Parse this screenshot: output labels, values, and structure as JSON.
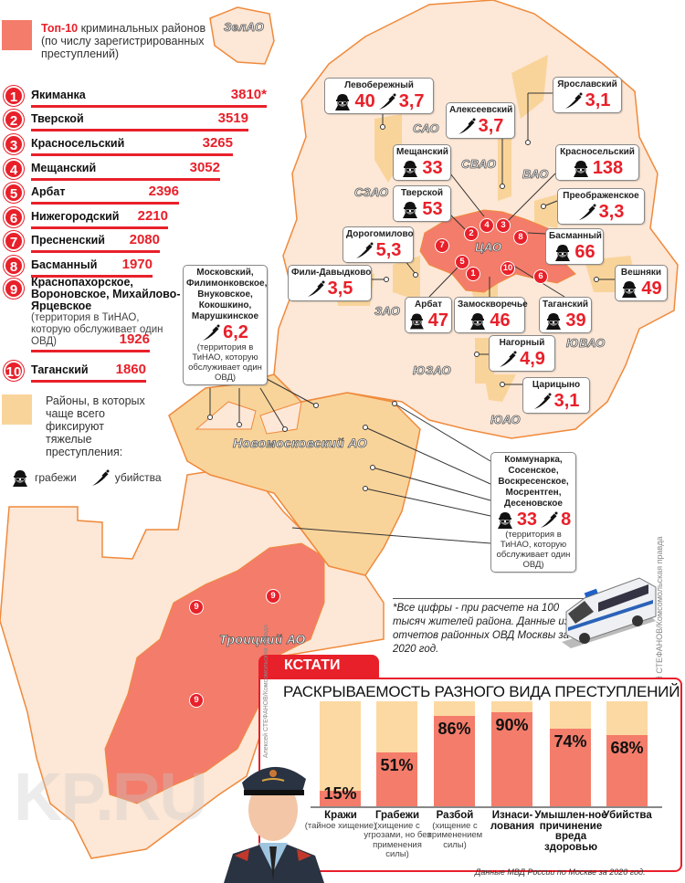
{
  "legend": {
    "top10_highlight": "Топ-10",
    "top10_rest": " криминальных районов (по числу зарегистрированных преступлений)",
    "heavy_crimes": "Районы, в которых чаще всего фиксируют тяжелые преступления:",
    "robbery_label": "грабежи",
    "murder_label": "убийства",
    "colors": {
      "top10": "#f47c6a",
      "heavy": "#f9d49a",
      "accent": "#e8202a"
    }
  },
  "ranking": [
    {
      "rank": "1",
      "name": "Якиманка",
      "value": 3810,
      "value_text": "3810*"
    },
    {
      "rank": "2",
      "name": "Тверской",
      "value": 3519,
      "value_text": "3519"
    },
    {
      "rank": "3",
      "name": "Красносельский",
      "value": 3265,
      "value_text": "3265"
    },
    {
      "rank": "4",
      "name": "Мещанский",
      "value": 3052,
      "value_text": "3052"
    },
    {
      "rank": "5",
      "name": "Арбат",
      "value": 2396,
      "value_text": "2396"
    },
    {
      "rank": "6",
      "name": "Нижегородский",
      "value": 2210,
      "value_text": "2210"
    },
    {
      "rank": "7",
      "name": "Пресненский",
      "value": 2080,
      "value_text": "2080"
    },
    {
      "rank": "8",
      "name": "Басманный",
      "value": 1970,
      "value_text": "1970"
    },
    {
      "rank": "9",
      "name": "Краснопахорское, Вороновское, Михайлово-Ярцевское",
      "note": "(территория в ТиНАО, которую обслуживает один ОВД)",
      "value": 1926,
      "value_text": "1926"
    },
    {
      "rank": "10",
      "name": "Таганский",
      "value": 1860,
      "value_text": "1860"
    }
  ],
  "areas": {
    "zelao": "ЗелАО",
    "sao": "САО",
    "svao": "СВАО",
    "vao": "ВАО",
    "szao": "СЗАО",
    "cao": "ЦАО",
    "zao": "ЗАО",
    "yuzao": "ЮЗАО",
    "yuvao": "ЮВАО",
    "yuao": "ЮАО",
    "novomoskovsky": "Новомосковский АО",
    "troitsky": "Троицкий АО"
  },
  "map_markers": [
    "1",
    "2",
    "3",
    "4",
    "5",
    "6",
    "7",
    "8",
    "10",
    "9",
    "9",
    "9"
  ],
  "callouts": {
    "levoberezhny": {
      "name": "Левобережный",
      "robbery": "40",
      "murder": "3,7"
    },
    "yaroslavsky": {
      "name": "Ярославский",
      "murder": "3,1"
    },
    "alekseevsky": {
      "name": "Алексеевский",
      "murder": "3,7"
    },
    "meshchansky": {
      "name": "Мещанский",
      "robbery": "33"
    },
    "krasnoselsky": {
      "name": "Красносельский",
      "robbery": "138"
    },
    "tverskoy": {
      "name": "Тверской",
      "robbery": "53"
    },
    "preobrazhenskoye": {
      "name": "Преображенское",
      "murder": "3,3"
    },
    "dorogomilovo": {
      "name": "Дорогомилово",
      "murder": "5,3"
    },
    "basmanny": {
      "name": "Басманный",
      "robbery": "66"
    },
    "fili": {
      "name": "Фили-Давыдково",
      "murder": "3,5"
    },
    "veshnyaki": {
      "name": "Вешняки",
      "robbery": "49"
    },
    "arbat": {
      "name": "Арбат",
      "robbery": "47"
    },
    "zamoskvorechye": {
      "name": "Замоскворечье",
      "robbery": "46"
    },
    "tagansky": {
      "name": "Таганский",
      "robbery": "39"
    },
    "nagorny": {
      "name": "Нагорный",
      "murder": "4,9"
    },
    "tsaritsyno": {
      "name": "Царицыно",
      "murder": "3,1"
    },
    "moskovsky": {
      "name": "Московский, Филимонковское, Внуковское, Кокошкино, Марушкинское",
      "murder": "6,2",
      "note": "(территория в ТиНАО, которую обслуживает один ОВД)"
    },
    "kommunarka": {
      "name": "Коммунарка, Сосенское, Воскресенское, Мосрентген, Десеновское",
      "robbery": "33",
      "murder": "8",
      "note": "(территория в ТиНАО, которую обслуживает один ОВД)"
    }
  },
  "footnote": "*Все цифры - при расчете на 100 тысяч жителей района. Данные из отчетов районных ОВД Москвы за 2020 год.",
  "credit": "Алексей СТЕФАНОВ/Комсомольская правда",
  "watermark": "KP.RU",
  "chart_data": {
    "type": "bar",
    "tab_label": "КСТАТИ",
    "title": "РАСКРЫВАЕМОСТЬ РАЗНОГО ВИДА ПРЕСТУПЛЕНИЙ",
    "categories": [
      "Кражи",
      "Грабежи",
      "Разбой",
      "Изнаси-лования",
      "Умышлен-ное причинение вреда здоровью",
      "Убийства"
    ],
    "category_notes": [
      "(тайное хищение)",
      "(хищение с угрозами, но без применения силы)",
      "(хищение с применением силы)",
      "",
      "",
      ""
    ],
    "values": [
      15,
      51,
      86,
      90,
      74,
      68
    ],
    "value_labels": [
      "15%",
      "51%",
      "86%",
      "90%",
      "74%",
      "68%"
    ],
    "ylim": [
      0,
      100
    ],
    "unit": "%",
    "source": "Данные МВД России по Москве за 2020 год.",
    "credit": "Алексей СТЕФАНОВ/Комсомольская правда",
    "colors": {
      "solved": "#f47c6a",
      "remainder": "#fcd9a2"
    }
  }
}
